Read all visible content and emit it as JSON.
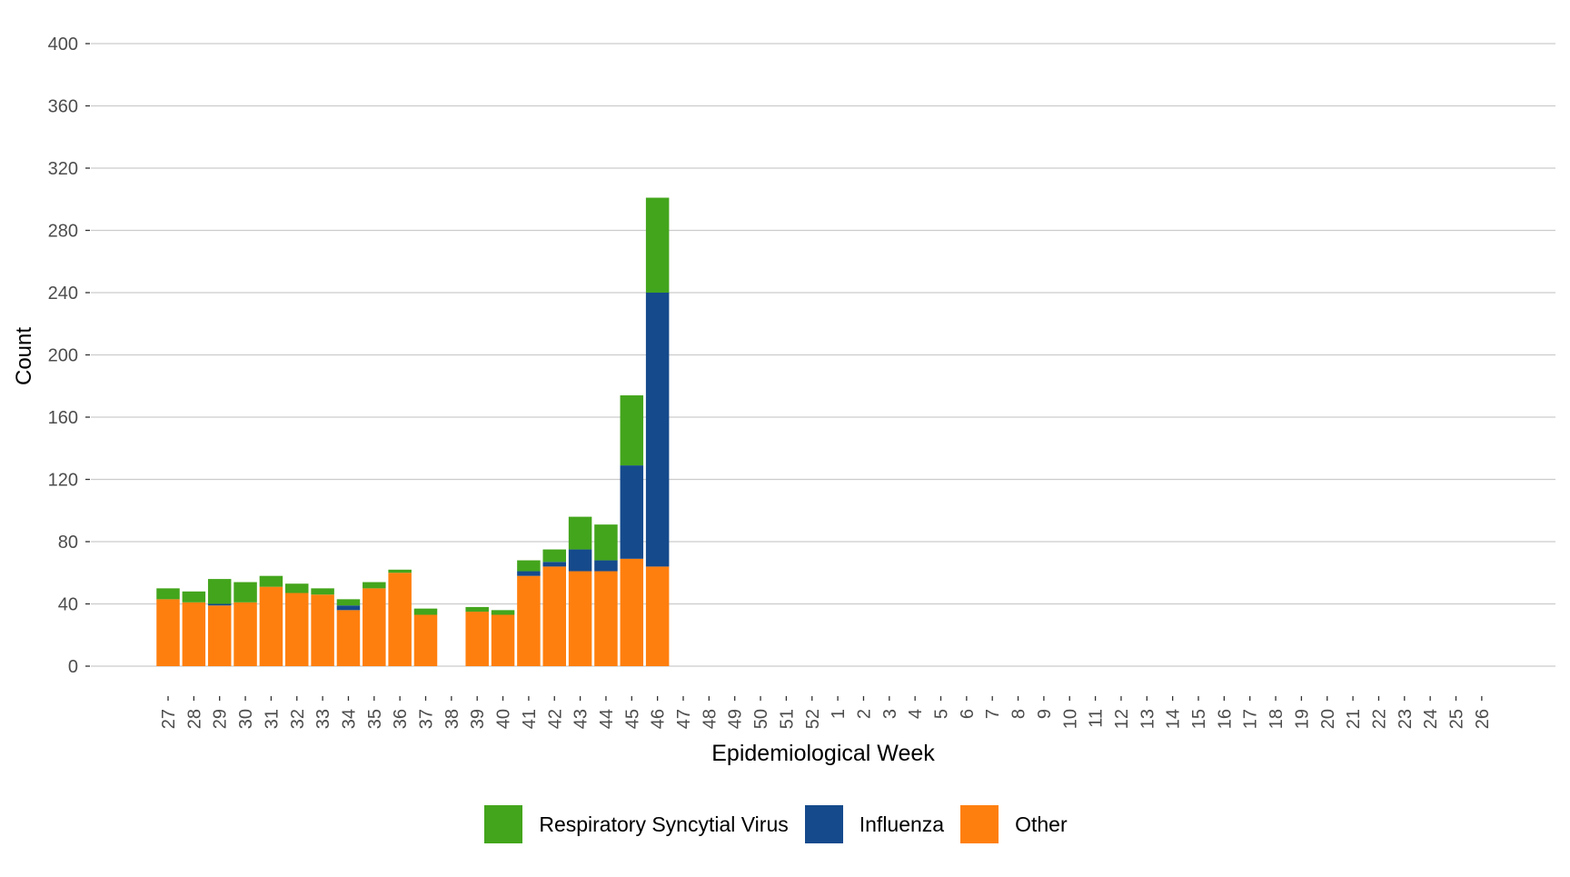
{
  "chart_data": {
    "type": "bar",
    "stacked": true,
    "title": "",
    "xlabel": "Epidemiological Week",
    "ylabel": "Count",
    "ylim": [
      0,
      400
    ],
    "yticks": [
      0,
      40,
      80,
      120,
      160,
      200,
      240,
      280,
      320,
      360,
      400
    ],
    "grid": true,
    "legend_position": "bottom",
    "categories": [
      "27",
      "28",
      "29",
      "30",
      "31",
      "32",
      "33",
      "34",
      "35",
      "36",
      "37",
      "38",
      "39",
      "40",
      "41",
      "42",
      "43",
      "44",
      "45",
      "46",
      "47",
      "48",
      "49",
      "50",
      "51",
      "52",
      "1",
      "2",
      "3",
      "4",
      "5",
      "6",
      "7",
      "8",
      "9",
      "10",
      "11",
      "12",
      "13",
      "14",
      "15",
      "16",
      "17",
      "18",
      "19",
      "20",
      "21",
      "22",
      "23",
      "24",
      "25",
      "26"
    ],
    "series": [
      {
        "name": "Other",
        "color": "#ff7f0e",
        "values": [
          43,
          41,
          39,
          41,
          51,
          47,
          46,
          36,
          50,
          60,
          33,
          0,
          35,
          33,
          58,
          64,
          61,
          61,
          69,
          64,
          0,
          0,
          0,
          0,
          0,
          0,
          0,
          0,
          0,
          0,
          0,
          0,
          0,
          0,
          0,
          0,
          0,
          0,
          0,
          0,
          0,
          0,
          0,
          0,
          0,
          0,
          0,
          0,
          0,
          0,
          0,
          0
        ]
      },
      {
        "name": "Influenza",
        "color": "#154a8c",
        "values": [
          0,
          0,
          1,
          0,
          0,
          0,
          0,
          3,
          0,
          0,
          0,
          0,
          0,
          0,
          3,
          3,
          14,
          7,
          60,
          176,
          0,
          0,
          0,
          0,
          0,
          0,
          0,
          0,
          0,
          0,
          0,
          0,
          0,
          0,
          0,
          0,
          0,
          0,
          0,
          0,
          0,
          0,
          0,
          0,
          0,
          0,
          0,
          0,
          0,
          0,
          0,
          0
        ]
      },
      {
        "name": "Respiratory Syncytial Virus",
        "color": "#43a51c",
        "values": [
          7,
          7,
          16,
          13,
          7,
          6,
          4,
          4,
          4,
          2,
          4,
          0,
          3,
          3,
          7,
          8,
          21,
          23,
          45,
          61,
          0,
          0,
          0,
          0,
          0,
          0,
          0,
          0,
          0,
          0,
          0,
          0,
          0,
          0,
          0,
          0,
          0,
          0,
          0,
          0,
          0,
          0,
          0,
          0,
          0,
          0,
          0,
          0,
          0,
          0,
          0,
          0
        ]
      }
    ],
    "legend": [
      {
        "label": "Respiratory Syncytial Virus",
        "color": "#43a51c"
      },
      {
        "label": "Influenza",
        "color": "#154a8c"
      },
      {
        "label": "Other",
        "color": "#ff7f0e"
      }
    ]
  }
}
